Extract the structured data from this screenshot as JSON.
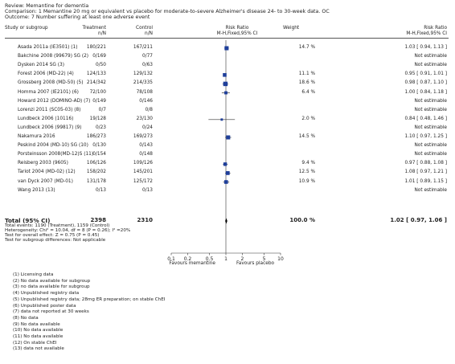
{
  "header": {
    "review": "Review:  Memantine for dementia",
    "comparison": "Comparison:  1 Memantine 20 mg or equivalent vs placebo for moderate-to-severe Alzheimer's disease 24- to 30-week data. OC",
    "outcome": "Outcome:  7 Number suffering at least one adverse event"
  },
  "columns": {
    "study": "Study or subgroup",
    "treatment": "Treatment",
    "treatment_sub": "n/N",
    "control": "Control",
    "control_sub": "n/N",
    "rr": "Risk Ratio",
    "rr_sub": "M-H,Fixed,95% CI",
    "weight": "Weight",
    "rr2": "Risk Ratio",
    "rr2_sub": "M-H,Fixed,95% CI"
  },
  "chart_data": {
    "type": "forest",
    "xscale": "log",
    "xlim": [
      0.1,
      10
    ],
    "xticks": [
      "0.1",
      "0.2",
      "0.5",
      "1",
      "2",
      "5",
      "10"
    ],
    "xlabel_left": "Favours memantine",
    "xlabel_right": "Favours placebo",
    "studies": [
      {
        "name": "Asada 2011a (IE3501) (1)",
        "treatment": "180/221",
        "control": "167/211",
        "weight": "14.7 %",
        "rr_text": "1.03 [ 0.94, 1.13 ]",
        "rr": 1.03,
        "lo": 0.94,
        "hi": 1.13,
        "w": 14.7
      },
      {
        "name": "Bakchine 2008 (99679) SG (2)",
        "treatment": "0/169",
        "control": "0/77",
        "weight": "",
        "rr_text": "Not estimable",
        "rr": null,
        "lo": null,
        "hi": null,
        "w": null
      },
      {
        "name": "Dysken 2014 SG (3)",
        "treatment": "0/50",
        "control": "0/63",
        "weight": "",
        "rr_text": "Not estimable",
        "rr": null,
        "lo": null,
        "hi": null,
        "w": null
      },
      {
        "name": "Forest 2006 (MD-22) (4)",
        "treatment": "124/133",
        "control": "129/132",
        "weight": "11.1 %",
        "rr_text": "0.95 [ 0.91, 1.01 ]",
        "rr": 0.95,
        "lo": 0.91,
        "hi": 1.01,
        "w": 11.1
      },
      {
        "name": "Grossberg 2008 (MD-50) (5)",
        "treatment": "214/342",
        "control": "214/335",
        "weight": "18.6 %",
        "rr_text": "0.98 [ 0.87, 1.10 ]",
        "rr": 0.98,
        "lo": 0.87,
        "hi": 1.1,
        "w": 18.6
      },
      {
        "name": "Homma 2007 (IE2101) (6)",
        "treatment": "72/100",
        "control": "78/108",
        "weight": "6.4 %",
        "rr_text": "1.00 [ 0.84, 1.18 ]",
        "rr": 1.0,
        "lo": 0.84,
        "hi": 1.18,
        "w": 6.4
      },
      {
        "name": "Howard 2012 (DOMINO-AD) (7)",
        "treatment": "0/149",
        "control": "0/146",
        "weight": "",
        "rr_text": "Not estimable",
        "rr": null,
        "lo": null,
        "hi": null,
        "w": null
      },
      {
        "name": "Lorenzi 2011 (SC05-03) (8)",
        "treatment": "0/7",
        "control": "0/8",
        "weight": "",
        "rr_text": "Not estimable",
        "rr": null,
        "lo": null,
        "hi": null,
        "w": null
      },
      {
        "name": "Lundbeck 2006 (10116)",
        "treatment": "19/128",
        "control": "23/130",
        "weight": "2.0 %",
        "rr_text": "0.84 [ 0.48, 1.46 ]",
        "rr": 0.84,
        "lo": 0.48,
        "hi": 1.46,
        "w": 2.0
      },
      {
        "name": "Lundbeck 2006 (99817) (9)",
        "treatment": "0/23",
        "control": "0/24",
        "weight": "",
        "rr_text": "Not estimable",
        "rr": null,
        "lo": null,
        "hi": null,
        "w": null
      },
      {
        "name": "Nakamura 2016",
        "treatment": "186/273",
        "control": "169/273",
        "weight": "14.5 %",
        "rr_text": "1.10 [ 0.97, 1.25 ]",
        "rr": 1.1,
        "lo": 0.97,
        "hi": 1.25,
        "w": 14.5
      },
      {
        "name": "Peskind 2004 (MD-10) SG (10)",
        "treatment": "0/130",
        "control": "0/143",
        "weight": "",
        "rr_text": "Not estimable",
        "rr": null,
        "lo": null,
        "hi": null,
        "w": null
      },
      {
        "name": "Porsteinsson 2008(MD-12)S (11)",
        "treatment": "0/154",
        "control": "0/148",
        "weight": "",
        "rr_text": "Not estimable",
        "rr": null,
        "lo": null,
        "hi": null,
        "w": null
      },
      {
        "name": "Reisberg 2003 (9605)",
        "treatment": "106/126",
        "control": "109/126",
        "weight": "9.4 %",
        "rr_text": "0.97 [ 0.88, 1.08 ]",
        "rr": 0.97,
        "lo": 0.88,
        "hi": 1.08,
        "w": 9.4
      },
      {
        "name": "Tariot 2004 (MD-02) (12)",
        "treatment": "158/202",
        "control": "145/201",
        "weight": "12.5 %",
        "rr_text": "1.08 [ 0.97, 1.21 ]",
        "rr": 1.08,
        "lo": 0.97,
        "hi": 1.21,
        "w": 12.5
      },
      {
        "name": "van Dyck 2007 (MD-01)",
        "treatment": "131/178",
        "control": "125/172",
        "weight": "10.9 %",
        "rr_text": "1.01 [ 0.89, 1.15 ]",
        "rr": 1.01,
        "lo": 0.89,
        "hi": 1.15,
        "w": 10.9
      },
      {
        "name": "Wang 2013 (13)",
        "treatment": "0/13",
        "control": "0/13",
        "weight": "",
        "rr_text": "Not estimable",
        "rr": null,
        "lo": null,
        "hi": null,
        "w": null
      }
    ],
    "total": {
      "label": "Total (95% CI)",
      "treatment": "2398",
      "control": "2310",
      "weight": "100.0 %",
      "rr_text": "1.02 [ 0.97, 1.06 ]",
      "rr": 1.02,
      "lo": 0.97,
      "hi": 1.06
    },
    "stats": [
      "Total events: 1190 (Treatment), 1159 (Control)",
      "Heterogeneity: Chi² = 10.04, df = 8 (P = 0.26); I² =20%",
      "Test for overall effect: Z = 0.75 (P = 0.45)",
      "Test for subgroup differences: Not applicable"
    ]
  },
  "footnotes": [
    "(1) Licensing data",
    "(2) No data available for subgroup",
    "(3) no data available for subgroup",
    "(4) Unpublished registry data",
    "(5) Unpublished registry data; 28mg ER preparation; on stable ChEI",
    "(6) Unpublished poster data",
    "(7) data not reported at 30 weeks",
    "(8) No data",
    "(9) No data available",
    "(10) No data available",
    "(11) No data available",
    "(12) On stable ChEI",
    "(13) data not available"
  ],
  "colors": {
    "marker": "#1f3f9a",
    "text": "#222222",
    "line": "#333333"
  }
}
